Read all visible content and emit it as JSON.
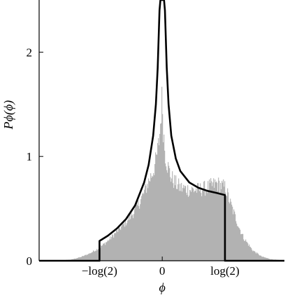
{
  "chart_data": {
    "type": "area",
    "title": "",
    "xlabel": "ϕ",
    "ylabel": "Pϕ(ϕ)",
    "xlim": [
      -1.36,
      1.35
    ],
    "ylim": [
      0,
      2.5
    ],
    "x_ticks": [
      {
        "value": -0.6931,
        "label": "−log(2)"
      },
      {
        "value": 0,
        "label": "0"
      },
      {
        "value": 0.6931,
        "label": "log(2)"
      }
    ],
    "y_ticks": [
      {
        "value": 0,
        "label": "0"
      },
      {
        "value": 1,
        "label": "1"
      },
      {
        "value": 2,
        "label": "2"
      }
    ],
    "grid": false,
    "legend": "none",
    "colors": {
      "histogram": "#a8a8a8",
      "curve": "#000000",
      "axes": "#000000"
    },
    "series": [
      {
        "kind": "histogram",
        "x": [
          -1.2,
          -1.1,
          -1.0,
          -0.9,
          -0.8,
          -0.7,
          -0.6,
          -0.5,
          -0.4,
          -0.3,
          -0.25,
          -0.2,
          -0.15,
          -0.1,
          -0.07,
          -0.05,
          -0.03,
          -0.02,
          -0.01,
          0.0,
          0.01,
          0.02,
          0.03,
          0.05,
          0.07,
          0.1,
          0.15,
          0.2,
          0.3,
          0.4,
          0.5,
          0.6,
          0.7,
          0.75,
          0.8,
          0.85,
          0.9,
          1.0,
          1.1,
          1.2,
          1.3
        ],
        "values": [
          0.0,
          0.004,
          0.012,
          0.035,
          0.07,
          0.12,
          0.19,
          0.28,
          0.37,
          0.48,
          0.56,
          0.65,
          0.76,
          0.86,
          0.95,
          1.05,
          1.18,
          1.3,
          1.45,
          1.58,
          1.3,
          1.18,
          1.05,
          0.95,
          0.88,
          0.8,
          0.74,
          0.7,
          0.68,
          0.68,
          0.7,
          0.74,
          0.7,
          0.56,
          0.44,
          0.32,
          0.22,
          0.1,
          0.04,
          0.015,
          0.006
        ]
      },
      {
        "kind": "curve",
        "x": [
          -1.36,
          -0.6931,
          -0.6931,
          -0.6,
          -0.5,
          -0.4,
          -0.3,
          -0.2,
          -0.15,
          -0.1,
          -0.07,
          -0.05,
          -0.03,
          -0.02,
          -0.01,
          0.0,
          0.01,
          0.02,
          0.03,
          0.05,
          0.07,
          0.1,
          0.15,
          0.2,
          0.3,
          0.4,
          0.5,
          0.6,
          0.6931,
          0.6931,
          1.35
        ],
        "values": [
          0.0,
          0.0,
          0.19,
          0.24,
          0.31,
          0.4,
          0.53,
          0.75,
          0.92,
          1.2,
          1.5,
          1.85,
          2.4,
          2.5,
          2.5,
          2.5,
          2.5,
          2.5,
          2.4,
          1.85,
          1.5,
          1.2,
          0.98,
          0.86,
          0.75,
          0.7,
          0.67,
          0.65,
          0.63,
          0.0,
          0.0
        ]
      }
    ]
  }
}
